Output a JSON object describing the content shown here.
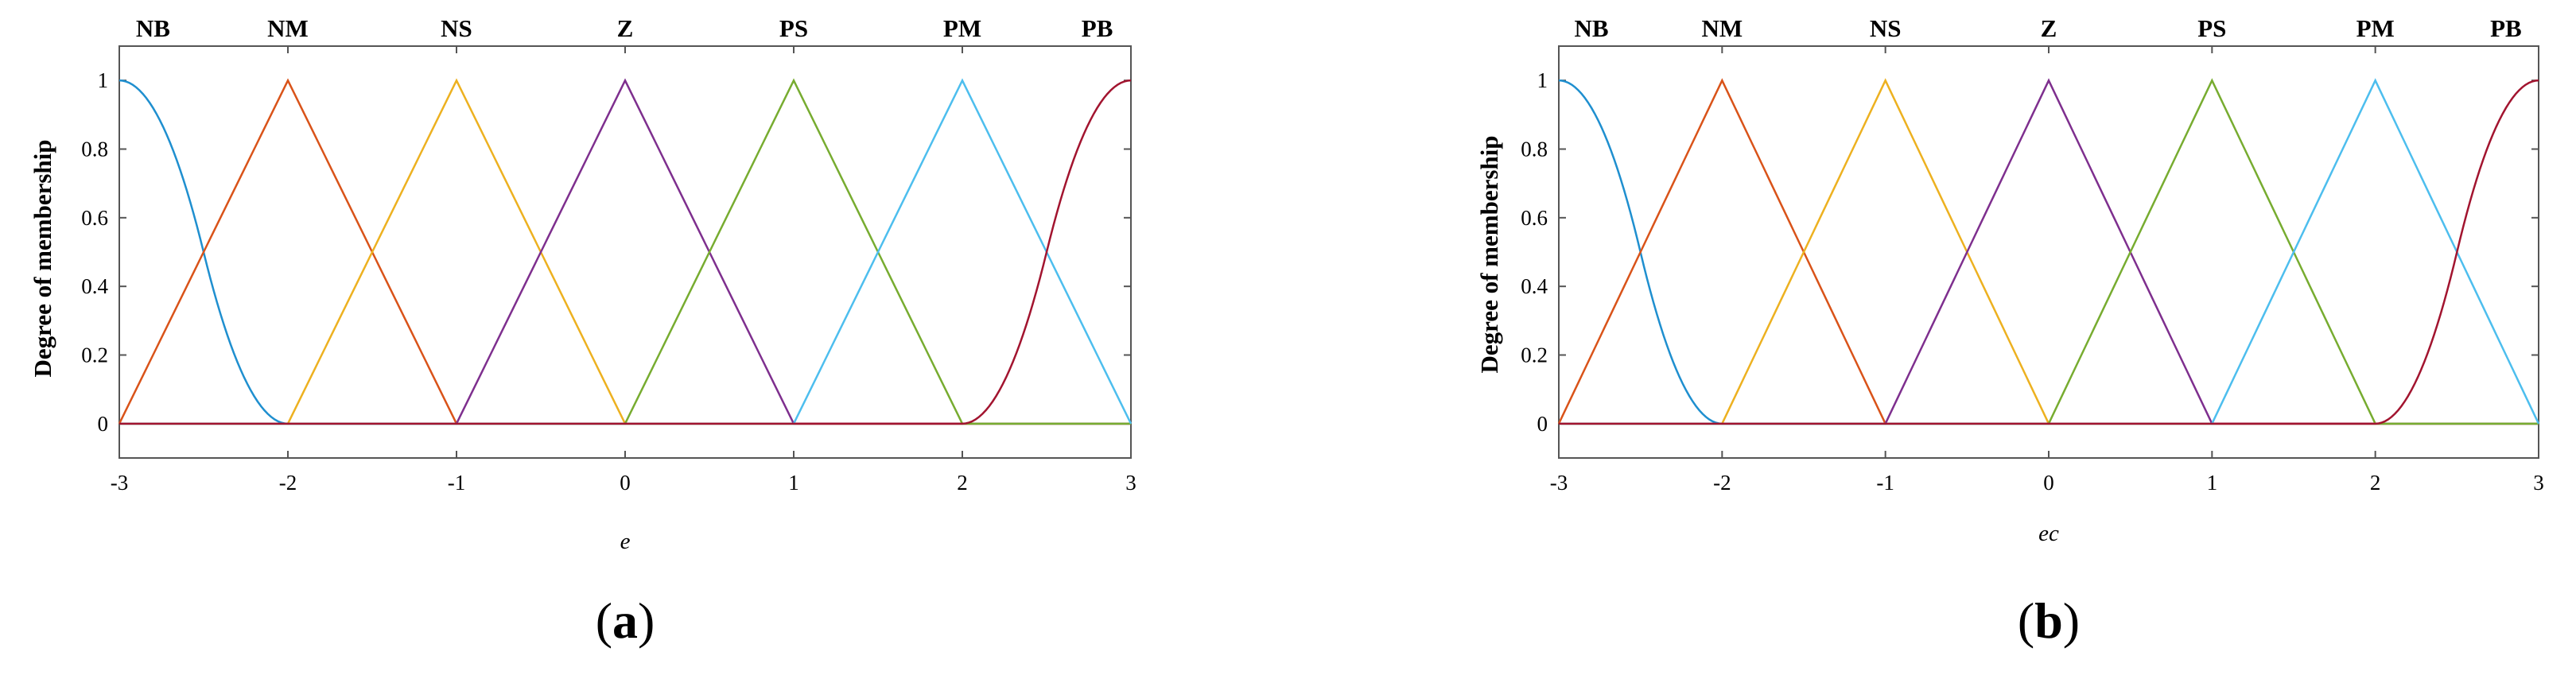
{
  "chart_data": [
    {
      "type": "line",
      "panel_label": "a",
      "xlabel": "e",
      "ylabel": "Degree of membership",
      "xlim": [
        -3,
        3
      ],
      "ylim": [
        -0.1,
        1.1
      ],
      "xticks": [
        "-3",
        "-2",
        "-1",
        "0",
        "1",
        "2",
        "3"
      ],
      "yticks": [
        "0",
        "0.2",
        "0.4",
        "0.6",
        "0.8",
        "1"
      ],
      "xtick_values": [
        -3,
        -2,
        -1,
        0,
        1,
        2,
        3
      ],
      "ytick_values": [
        0,
        0.2,
        0.4,
        0.6,
        0.8,
        1
      ],
      "series": [
        {
          "name": "NB",
          "shape": "z-shaped",
          "params": [
            -3,
            -2
          ],
          "label_x": -2.8,
          "color": "#1f8fcf"
        },
        {
          "name": "NM",
          "shape": "triangle",
          "params": [
            -3,
            -2,
            -1
          ],
          "label_x": -2,
          "color": "#d95319"
        },
        {
          "name": "NS",
          "shape": "triangle",
          "params": [
            -2,
            -1,
            0
          ],
          "label_x": -1,
          "color": "#edb120"
        },
        {
          "name": "Z",
          "shape": "triangle",
          "params": [
            -1,
            0,
            1
          ],
          "label_x": 0,
          "color": "#7e2f8e"
        },
        {
          "name": "PS",
          "shape": "triangle",
          "params": [
            0,
            1,
            2
          ],
          "label_x": 1,
          "color": "#77ac30"
        },
        {
          "name": "PM",
          "shape": "triangle",
          "params": [
            1,
            2,
            3
          ],
          "label_x": 2,
          "color": "#4dbeee"
        },
        {
          "name": "PB",
          "shape": "s-shaped",
          "params": [
            2,
            3
          ],
          "label_x": 2.8,
          "color": "#a2142f"
        }
      ]
    },
    {
      "type": "line",
      "panel_label": "b",
      "xlabel": "ec",
      "ylabel": "Degree of membership",
      "xlim": [
        -3,
        3
      ],
      "ylim": [
        -0.1,
        1.1
      ],
      "xticks": [
        "-3",
        "-2",
        "-1",
        "0",
        "1",
        "2",
        "3"
      ],
      "yticks": [
        "0",
        "0.2",
        "0.4",
        "0.6",
        "0.8",
        "1"
      ],
      "xtick_values": [
        -3,
        -2,
        -1,
        0,
        1,
        2,
        3
      ],
      "ytick_values": [
        0,
        0.2,
        0.4,
        0.6,
        0.8,
        1
      ],
      "series": [
        {
          "name": "NB",
          "shape": "z-shaped",
          "params": [
            -3,
            -2
          ],
          "label_x": -2.8,
          "color": "#1f8fcf"
        },
        {
          "name": "NM",
          "shape": "triangle",
          "params": [
            -3,
            -2,
            -1
          ],
          "label_x": -2,
          "color": "#d95319"
        },
        {
          "name": "NS",
          "shape": "triangle",
          "params": [
            -2,
            -1,
            0
          ],
          "label_x": -1,
          "color": "#edb120"
        },
        {
          "name": "Z",
          "shape": "triangle",
          "params": [
            -1,
            0,
            1
          ],
          "label_x": 0,
          "color": "#7e2f8e"
        },
        {
          "name": "PS",
          "shape": "triangle",
          "params": [
            0,
            1,
            2
          ],
          "label_x": 1,
          "color": "#77ac30"
        },
        {
          "name": "PM",
          "shape": "triangle",
          "params": [
            1,
            2,
            3
          ],
          "label_x": 2,
          "color": "#4dbeee"
        },
        {
          "name": "PB",
          "shape": "s-shaped",
          "params": [
            2,
            3
          ],
          "label_x": 2.8,
          "color": "#a2142f"
        }
      ]
    }
  ]
}
